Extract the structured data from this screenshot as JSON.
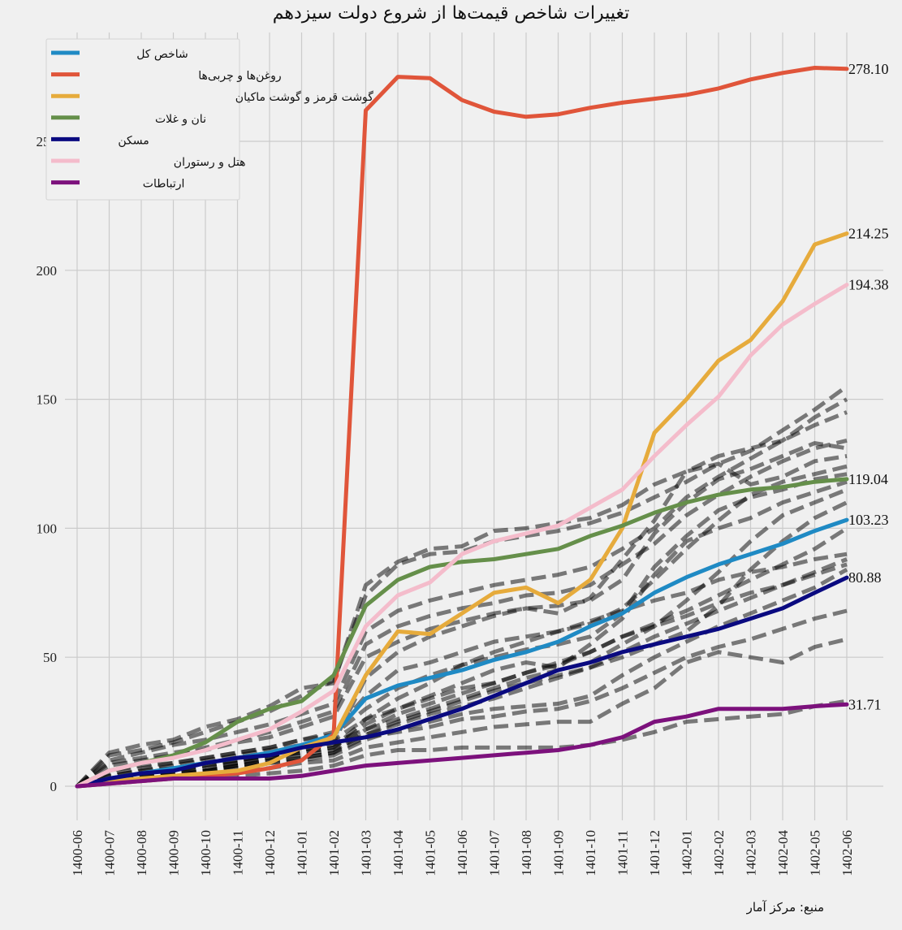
{
  "chart_data": {
    "type": "line",
    "title": "تغییرات شاخص قیمت‌ها از شروع دولت سیزدهم",
    "source": "منبع: مرکز آمار",
    "xlabel": "",
    "ylabel": "",
    "ylim": [
      -8,
      282
    ],
    "yticks": [
      0,
      50,
      100,
      150,
      200,
      250
    ],
    "grid": true,
    "legend_position": "top-left",
    "x": [
      "1400-06",
      "1400-07",
      "1400-08",
      "1400-09",
      "1400-10",
      "1400-11",
      "1400-12",
      "1401-01",
      "1401-02",
      "1401-03",
      "1401-04",
      "1401-05",
      "1401-06",
      "1401-07",
      "1401-08",
      "1401-09",
      "1401-10",
      "1401-11",
      "1401-12",
      "1402-01",
      "1402-02",
      "1402-03",
      "1402-04",
      "1402-05",
      "1402-06"
    ],
    "series": [
      {
        "name": "شاخص کل",
        "color": "#1f8ac4",
        "values": [
          0,
          3,
          5,
          7,
          9,
          11,
          13,
          16,
          20,
          34,
          39,
          42,
          45,
          49,
          52,
          56,
          62,
          67,
          75,
          81,
          86,
          90,
          94,
          99,
          103.23
        ]
      },
      {
        "name": "روغن‌ها و چربی‌ها",
        "color": "#e0553a",
        "values": [
          0,
          1,
          2,
          3,
          4,
          5,
          7,
          10,
          20,
          262,
          275,
          274.5,
          266,
          261.5,
          259.5,
          260.5,
          263,
          265,
          266.5,
          268,
          270.5,
          274,
          276.5,
          278.5,
          278.1
        ]
      },
      {
        "name": "گوشت قرمز و گوشت ماکیان",
        "color": "#e6ab3c",
        "values": [
          0,
          2,
          3,
          4,
          5,
          6,
          9,
          15,
          19,
          43,
          60,
          59,
          67,
          75,
          77,
          71,
          80,
          100,
          137,
          150,
          165,
          173,
          188,
          210,
          214.25
        ]
      },
      {
        "name": "نان و غلات",
        "color": "#658f4a",
        "values": [
          0,
          6,
          9,
          12,
          17,
          25,
          30,
          33,
          43,
          70,
          80,
          85,
          87,
          88,
          90,
          92,
          97,
          101,
          106,
          110,
          113,
          115,
          116,
          118,
          119.04
        ]
      },
      {
        "name": "مسکن",
        "color": "#0a0a80",
        "values": [
          0,
          3,
          5,
          6,
          9,
          11,
          12,
          15,
          17,
          19,
          22,
          26,
          30,
          35,
          40,
          45,
          48,
          52,
          55,
          58,
          61,
          65,
          69,
          75,
          80.88
        ]
      },
      {
        "name": "هتل و رستوران",
        "color": "#f4bccb",
        "values": [
          0,
          6,
          9,
          11,
          14,
          18,
          22,
          29,
          37,
          62,
          74,
          79,
          90,
          95,
          98,
          101,
          108,
          115,
          128,
          140,
          151,
          167,
          179,
          187,
          194.38
        ]
      },
      {
        "name": "ارتباطات",
        "color": "#7c117c",
        "values": [
          0,
          1,
          2,
          3,
          3,
          3,
          3,
          4,
          6,
          8,
          9,
          10,
          11,
          12,
          13,
          14,
          16,
          19,
          25,
          27,
          30,
          30,
          30,
          31,
          31.71
        ]
      }
    ],
    "background_series_style": "dashed-gray",
    "background_series": [
      [
        0,
        13,
        16,
        18,
        23,
        26,
        31,
        38,
        40,
        78,
        87,
        92,
        93,
        99,
        100,
        102,
        104,
        109,
        117,
        122,
        128,
        131,
        134,
        143,
        150
      ],
      [
        0,
        12,
        14,
        17,
        21,
        25,
        29,
        35,
        41,
        74,
        86,
        90,
        91,
        95,
        97,
        99,
        102,
        106,
        112,
        118,
        125,
        130,
        138,
        146,
        155
      ],
      [
        0,
        10,
        13,
        16,
        18,
        21,
        24,
        28,
        32,
        60,
        68,
        72,
        75,
        78,
        80,
        82,
        85,
        92,
        100,
        112,
        120,
        127,
        134,
        140,
        145
      ],
      [
        0,
        9,
        11,
        13,
        15,
        18,
        21,
        25,
        29,
        55,
        62,
        66,
        69,
        71,
        74,
        75,
        78,
        86,
        94,
        105,
        113,
        120,
        126,
        131,
        134
      ],
      [
        0,
        8,
        10,
        12,
        14,
        17,
        19,
        23,
        27,
        50,
        56,
        61,
        64,
        67,
        69,
        70,
        72,
        80,
        98,
        110,
        119,
        123,
        128,
        133,
        131
      ],
      [
        0,
        2,
        3,
        4,
        6,
        8,
        10,
        14,
        17,
        42,
        52,
        58,
        62,
        66,
        69,
        67,
        73,
        88,
        103,
        122,
        125,
        117,
        120,
        126,
        128
      ],
      [
        0,
        6,
        8,
        9,
        11,
        13,
        15,
        18,
        21,
        35,
        45,
        48,
        52,
        56,
        58,
        60,
        63,
        69,
        80,
        92,
        103,
        113,
        118,
        121,
        124
      ],
      [
        0,
        5,
        7,
        9,
        11,
        13,
        15,
        18,
        20,
        30,
        38,
        43,
        47,
        50,
        53,
        55,
        58,
        67,
        85,
        97,
        107,
        112,
        115,
        119,
        121
      ],
      [
        0,
        4,
        6,
        8,
        10,
        12,
        14,
        16,
        18,
        26,
        30,
        35,
        40,
        45,
        48,
        46,
        55,
        65,
        82,
        95,
        100,
        104,
        110,
        114,
        118
      ],
      [
        0,
        4,
        6,
        7,
        9,
        11,
        13,
        15,
        17,
        22,
        26,
        30,
        34,
        38,
        42,
        45,
        48,
        55,
        62,
        72,
        83,
        95,
        105,
        110,
        115
      ],
      [
        0,
        3,
        5,
        7,
        9,
        10,
        12,
        14,
        16,
        20,
        25,
        29,
        33,
        37,
        40,
        43,
        46,
        50,
        55,
        60,
        70,
        84,
        95,
        104,
        110
      ],
      [
        0,
        3,
        5,
        6,
        8,
        10,
        12,
        13,
        15,
        24,
        30,
        34,
        38,
        40,
        44,
        48,
        52,
        58,
        63,
        68,
        74,
        80,
        86,
        92,
        100
      ],
      [
        0,
        3,
        4,
        6,
        8,
        9,
        11,
        13,
        15,
        26,
        34,
        40,
        47,
        52,
        56,
        60,
        64,
        68,
        72,
        75,
        80,
        83,
        85,
        88,
        90
      ],
      [
        0,
        2,
        4,
        5,
        7,
        9,
        11,
        12,
        14,
        20,
        24,
        28,
        31,
        34,
        38,
        42,
        46,
        52,
        58,
        63,
        68,
        73,
        78,
        83,
        88
      ],
      [
        0,
        2,
        3,
        5,
        6,
        8,
        10,
        11,
        13,
        22,
        28,
        32,
        36,
        40,
        44,
        47,
        52,
        58,
        62,
        66,
        71,
        75,
        78,
        82,
        86
      ],
      [
        0,
        2,
        3,
        4,
        6,
        7,
        9,
        10,
        12,
        18,
        22,
        25,
        28,
        30,
        31,
        32,
        35,
        43,
        50,
        56,
        62,
        67,
        72,
        77,
        84
      ],
      [
        0,
        3,
        4,
        5,
        6,
        8,
        9,
        11,
        13,
        19,
        21,
        23,
        26,
        27,
        29,
        30,
        33,
        38,
        44,
        50,
        54,
        57,
        61,
        65,
        68
      ],
      [
        0,
        2,
        3,
        4,
        5,
        6,
        7,
        9,
        10,
        15,
        17,
        19,
        21,
        23,
        24,
        25,
        25,
        32,
        38,
        48,
        52,
        50,
        48,
        54,
        57
      ],
      [
        0,
        1,
        2,
        3,
        4,
        4,
        5,
        6,
        8,
        12,
        14,
        14,
        15,
        15,
        15,
        15,
        16,
        18,
        21,
        25,
        26,
        27,
        28,
        31,
        33
      ]
    ],
    "end_labels": [
      "278.10",
      "214.25",
      "194.38",
      "119.04",
      "103.23",
      "80.88",
      "31.71"
    ]
  }
}
